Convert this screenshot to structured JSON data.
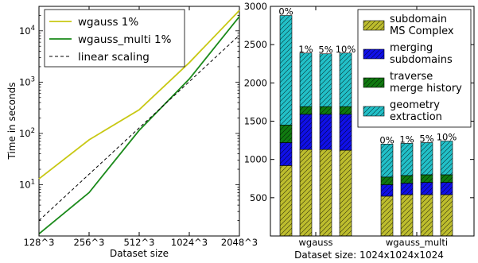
{
  "chart_data": [
    {
      "type": "line",
      "xlabel": "Dataset size",
      "ylabel": "Time in seconds",
      "yscale": "log",
      "ylim": [
        1,
        30000
      ],
      "x_ticks": [
        "128^3",
        "256^3",
        "512^3",
        "1024^3",
        "2048^3"
      ],
      "y_ticks": [
        {
          "value": 10,
          "base": "10",
          "exp": "1"
        },
        {
          "value": 100,
          "base": "10",
          "exp": "2"
        },
        {
          "value": 1000,
          "base": "10",
          "exp": "3"
        },
        {
          "value": 10000,
          "base": "10",
          "exp": "4"
        }
      ],
      "legend_position": "upper left",
      "grid": false,
      "series": [
        {
          "name": "wgauss 1%",
          "color": "#c8c814",
          "dash": "solid",
          "values": [
            13,
            75,
            290,
            2400,
            25000
          ]
        },
        {
          "name": "wgauss_multi 1%",
          "color": "#1a8a1a",
          "dash": "solid",
          "values": [
            1.1,
            7,
            115,
            1150,
            19000
          ]
        },
        {
          "name": "linear scaling",
          "color": "#000000",
          "dash": "dashed",
          "values": [
            2,
            16,
            128,
            1024,
            8192
          ]
        }
      ]
    },
    {
      "type": "bar",
      "stacked": true,
      "xlabel": "Dataset size: 1024x1024x1024",
      "ylim": [
        0,
        3000
      ],
      "y_ticks": [
        500,
        1000,
        1500,
        2000,
        2500,
        3000
      ],
      "group_labels": [
        "wgauss",
        "wgauss_multi"
      ],
      "legend_position": "upper right",
      "grid": false,
      "components": [
        {
          "name": "subdomain\nMS Complex",
          "color": "#bdbd2e"
        },
        {
          "name": "merging\nsubdomains",
          "color": "#1010e8"
        },
        {
          "name": "traverse\nmerge history",
          "color": "#107a10"
        },
        {
          "name": "geometry\nextraction",
          "color": "#22c0c8"
        }
      ],
      "bars": [
        {
          "group": "wgauss",
          "label": "0%",
          "values": [
            920,
            300,
            230,
            1430
          ]
        },
        {
          "group": "wgauss",
          "label": "1%",
          "values": [
            1130,
            460,
            100,
            700
          ]
        },
        {
          "group": "wgauss",
          "label": "5%",
          "values": [
            1130,
            460,
            100,
            690
          ]
        },
        {
          "group": "wgauss",
          "label": "10%",
          "values": [
            1120,
            470,
            100,
            700
          ]
        },
        {
          "group": "wgauss_multi",
          "label": "0%",
          "values": [
            520,
            150,
            100,
            430
          ]
        },
        {
          "group": "wgauss_multi",
          "label": "1%",
          "values": [
            540,
            150,
            100,
            420
          ]
        },
        {
          "group": "wgauss_multi",
          "label": "5%",
          "values": [
            540,
            160,
            100,
            420
          ]
        },
        {
          "group": "wgauss_multi",
          "label": "10%",
          "values": [
            540,
            160,
            100,
            440
          ]
        }
      ]
    }
  ]
}
